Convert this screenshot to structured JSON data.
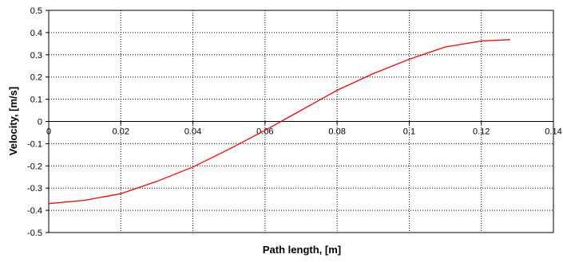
{
  "chart_data": {
    "type": "line",
    "title": "",
    "xlabel": "Path length, [m]",
    "ylabel": "Velocity, [m/s]",
    "xlim": [
      0,
      0.14
    ],
    "ylim": [
      -0.5,
      0.5
    ],
    "x_ticks": [
      0,
      0.02,
      0.04,
      0.06,
      0.08,
      0.1,
      0.12,
      0.14
    ],
    "x_tick_labels": [
      "0",
      "0.02",
      "0.04",
      "0.06",
      "0.08",
      "0.1",
      "0.12",
      "0.14"
    ],
    "y_ticks": [
      0.5,
      0.4,
      0.3,
      0.2,
      0.1,
      0,
      -0.1,
      -0.2,
      -0.3,
      -0.4,
      -0.5
    ],
    "y_tick_labels": [
      "0.5",
      "0.4",
      "0.3",
      "0.2",
      "0.1",
      "0",
      "-0.1",
      "-0.2",
      "-0.3",
      "-0.4",
      "-0.5"
    ],
    "grid": true,
    "legend": "none",
    "series": [
      {
        "color": "#ff0000",
        "x": [
          0,
          0.01,
          0.02,
          0.03,
          0.04,
          0.05,
          0.06,
          0.07,
          0.08,
          0.09,
          0.1,
          0.11,
          0.12,
          0.128
        ],
        "y": [
          -0.37,
          -0.355,
          -0.325,
          -0.27,
          -0.205,
          -0.125,
          -0.04,
          0.05,
          0.14,
          0.215,
          0.28,
          0.335,
          0.362,
          0.368
        ]
      }
    ]
  }
}
